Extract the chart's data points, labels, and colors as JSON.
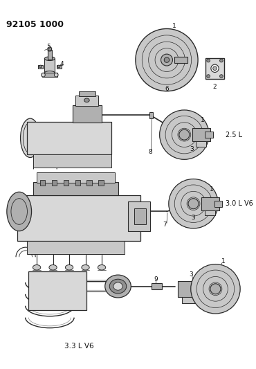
{
  "title": "92105 1000",
  "bg": "#ffffff",
  "lc": "#2a2a2a",
  "tc": "#111111",
  "gray1": "#c8c8c8",
  "gray2": "#b0b0b0",
  "gray3": "#909090",
  "gray4": "#d8d8d8",
  "label_25": "2.5 L",
  "label_30": "3.0 L V6",
  "label_33": "3.3 L V6"
}
